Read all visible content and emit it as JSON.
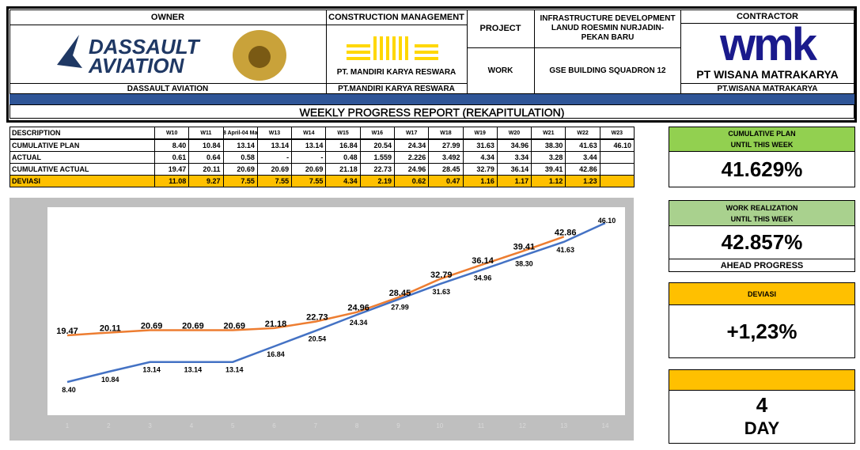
{
  "header": {
    "owner": {
      "label": "OWNER",
      "logo": [
        "DASSAULT",
        "AVIATION"
      ],
      "name": "DASSAULT AVIATION"
    },
    "construction_management": {
      "label": "CONSTRUCTION MANAGEMENT",
      "logo": "PT. MANDIRI KARYA RESWARA",
      "name": "PT.MANDIRI KARYA RESWARA"
    },
    "project": {
      "label": "PROJECT",
      "value": "INFRASTRUCTURE DEVELOPMENT LANUD ROESMIN NURJADIN-PEKAN BARU"
    },
    "work": {
      "label": "WORK",
      "value": "GSE BUILDING SQUADRON 12"
    },
    "contractor": {
      "label": "CONTRACTOR",
      "logo": [
        "wmk",
        "PT WISANA MATRAKARYA"
      ],
      "name": "PT.WISANA MATRAKARYA"
    },
    "title": "WEEKLY PROGRESS REPORT (REKAPITULATION)"
  },
  "table": {
    "columns": [
      "DESCRIPTION",
      "W10",
      "W11",
      "8 April-04 Ma",
      "W13",
      "W14",
      "W15",
      "W16",
      "W17",
      "W18",
      "W19",
      "W20",
      "W21",
      "W22",
      "W23"
    ],
    "rows": [
      [
        "CUMULATIVE PLAN",
        "8.40",
        "10.84",
        "13.14",
        "13.14",
        "13.14",
        "16.84",
        "20.54",
        "24.34",
        "27.99",
        "31.63",
        "34.96",
        "38.30",
        "41.63",
        "46.10"
      ],
      [
        "ACTUAL",
        "0.61",
        "0.64",
        "0.58",
        "-",
        "-",
        "0.48",
        "1.559",
        "2.226",
        "3.492",
        "4.34",
        "3.34",
        "3.28",
        "3.44",
        null
      ],
      [
        "CUMULATIVE ACTUAL",
        "19.47",
        "20.11",
        "20.69",
        "20.69",
        "20.69",
        "21.18",
        "22.73",
        "24.96",
        "28.45",
        "32.79",
        "36.14",
        "39.41",
        "42.86",
        null
      ],
      [
        "DEVIASI",
        "11.08",
        "9.27",
        "7.55",
        "7.55",
        "7.55",
        "4.34",
        "2.19",
        "0.62",
        "0.47",
        "1.16",
        "1.17",
        "1.12",
        "1.23",
        null
      ]
    ]
  },
  "cards": [
    {
      "title": "CUMULATIVE PLAN",
      "subtitle": "UNTIL THIS WEEK",
      "value": "41.629%"
    },
    {
      "title": "WORK REALIZATION",
      "subtitle": "UNTIL THIS WEEK",
      "value": "42.857%",
      "footer": "AHEAD PROGRESS"
    },
    {
      "title": "DEVIASI",
      "value": "+1,23%"
    },
    {
      "value": "4",
      "unit": "DAY"
    }
  ],
  "chart_data": {
    "type": "line",
    "categories": [
      1,
      2,
      3,
      4,
      5,
      6,
      7,
      8,
      9,
      10,
      11,
      12,
      13,
      14
    ],
    "series": [
      {
        "name": "Cumulative Plan",
        "color": "#4472c4",
        "values": [
          8.4,
          10.84,
          13.14,
          13.14,
          13.14,
          16.84,
          20.54,
          24.34,
          27.99,
          31.63,
          34.96,
          38.3,
          41.63,
          46.1
        ],
        "value_labels": [
          "8.40",
          "10.84",
          "13.14",
          "13.14",
          "13.14",
          "16.84",
          "20.54",
          "24.34",
          "27.99",
          "31.63",
          "34.96",
          "38.30",
          "41.63",
          "46.10"
        ]
      },
      {
        "name": "Cumulative Actual",
        "color": "#ed7d31",
        "values": [
          19.47,
          20.11,
          20.69,
          20.69,
          20.69,
          21.18,
          22.73,
          24.96,
          28.45,
          32.79,
          36.14,
          39.41,
          42.86,
          null
        ],
        "value_labels": [
          "19.47",
          "20.11",
          "20.69",
          "20.69",
          "20.69",
          "21.18",
          "22.73",
          "24.96",
          "28.45",
          "32.79",
          "36.14",
          "39.41",
          "42.86",
          null
        ]
      }
    ]
  }
}
